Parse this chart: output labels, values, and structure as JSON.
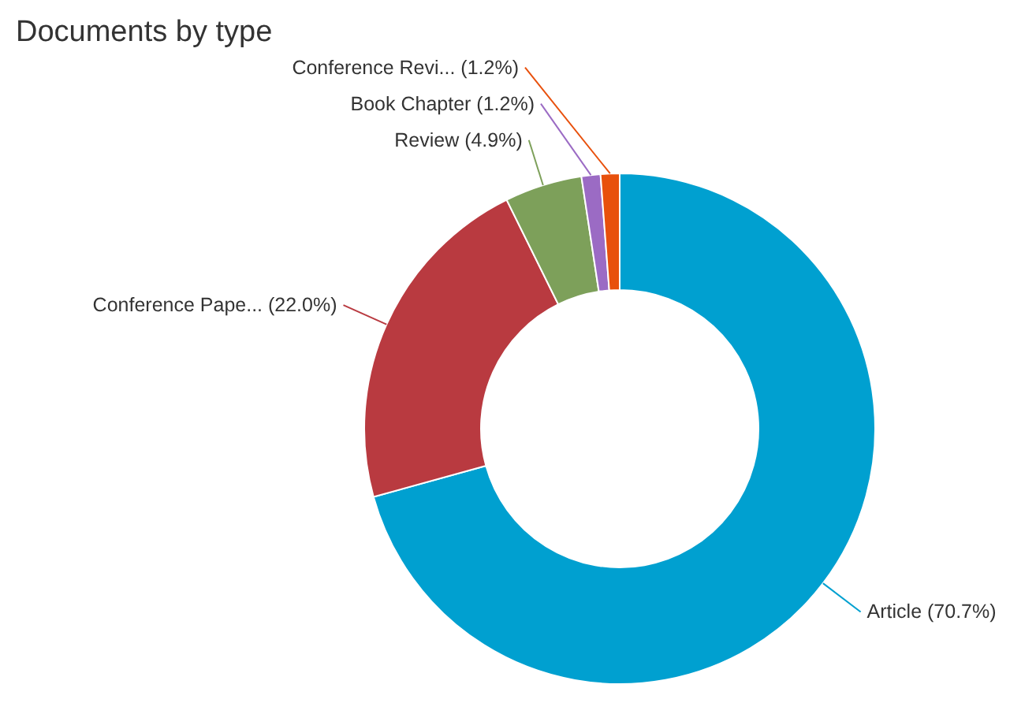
{
  "chart_data": {
    "type": "donut",
    "title": "Documents by type",
    "categories": [
      "Article",
      "Conference Pape...",
      "Review",
      "Book Chapter",
      "Conference Revi..."
    ],
    "values": [
      70.7,
      22.0,
      4.9,
      1.2,
      1.2
    ],
    "colors": [
      "#00a0d0",
      "#b93a40",
      "#7da05a",
      "#9b6bc4",
      "#e8500c"
    ],
    "value_labels": [
      "(70.7%)",
      "(22.0%)",
      "(4.9%)",
      "(1.2%)",
      "(1.2%)"
    ]
  }
}
